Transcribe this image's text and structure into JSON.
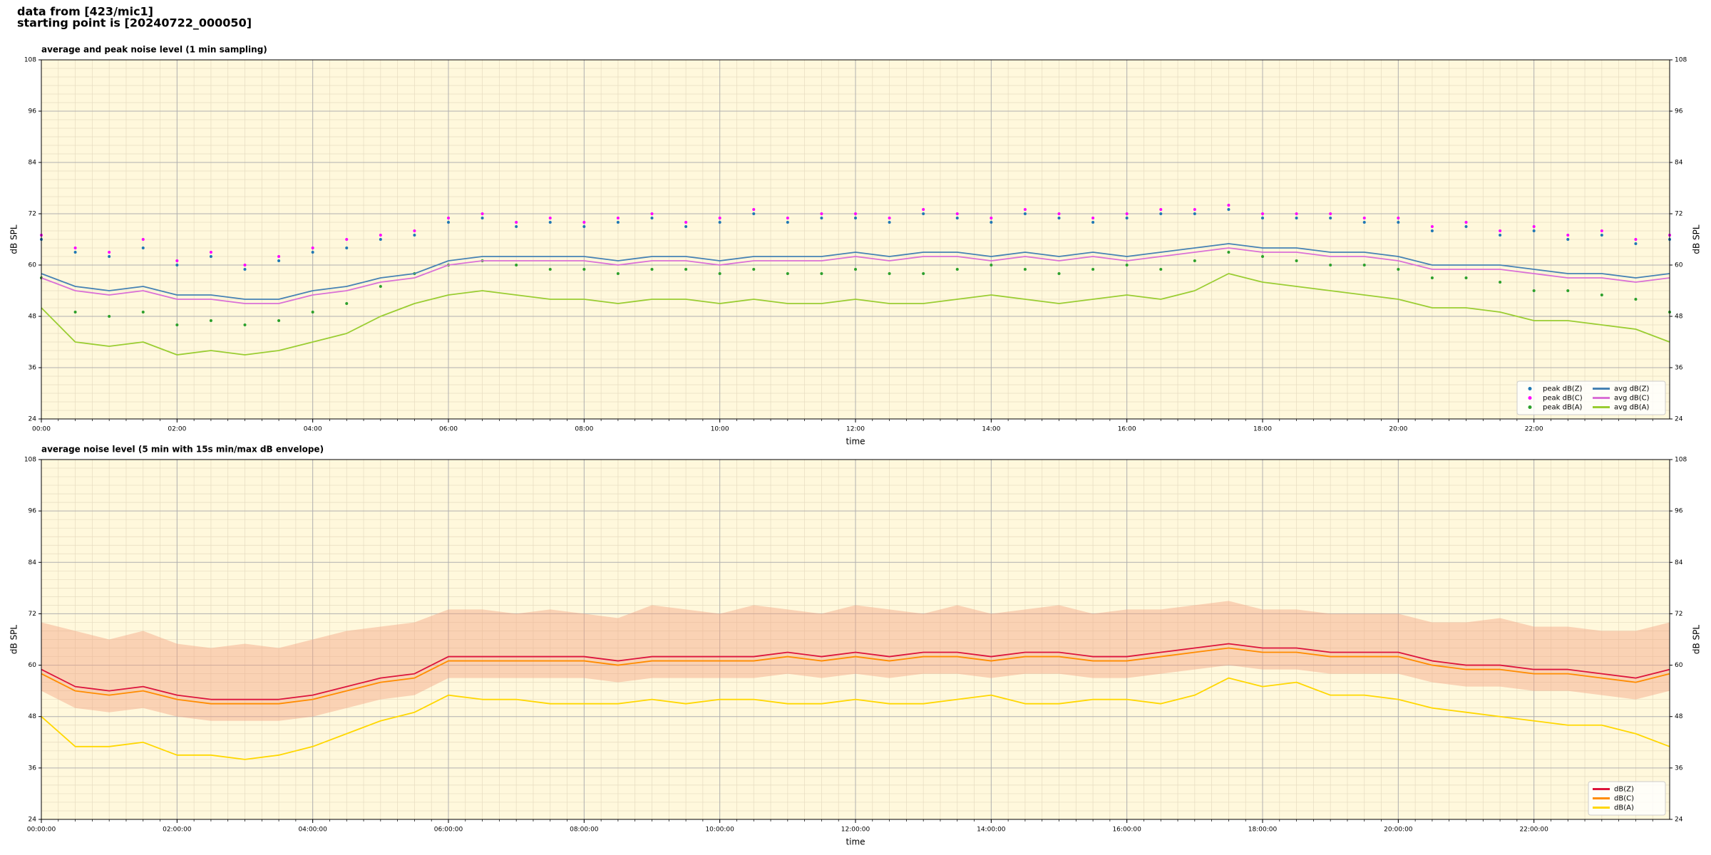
{
  "header": {
    "lines": [
      "data from [423/mic1]",
      "starting point is [20240722_000050]"
    ]
  },
  "chart_data": [
    {
      "type": "line",
      "title": "average and peak noise level (1 min sampling)",
      "xlabel": "time",
      "ylabel": "dB SPL",
      "background": "#fff8dc",
      "grid": true,
      "minor_grid": true,
      "legend": {
        "loc": "lower right",
        "ncol": 2
      },
      "xlim": [
        0,
        24
      ],
      "ylim": [
        24,
        108
      ],
      "yticks": [
        24,
        36,
        48,
        60,
        72,
        84,
        96,
        108
      ],
      "xticks": [
        {
          "value": 0,
          "label": "00:00"
        },
        {
          "value": 2,
          "label": "02:00"
        },
        {
          "value": 4,
          "label": "04:00"
        },
        {
          "value": 6,
          "label": "06:00"
        },
        {
          "value": 8,
          "label": "08:00"
        },
        {
          "value": 10,
          "label": "10:00"
        },
        {
          "value": 12,
          "label": "12:00"
        },
        {
          "value": 14,
          "label": "14:00"
        },
        {
          "value": 16,
          "label": "16:00"
        },
        {
          "value": 18,
          "label": "18:00"
        },
        {
          "value": 20,
          "label": "20:00"
        },
        {
          "value": 22,
          "label": "22:00"
        }
      ],
      "x": [
        0,
        0.5,
        1,
        1.5,
        2,
        2.5,
        3,
        3.5,
        4,
        4.5,
        5,
        5.5,
        6,
        6.5,
        7,
        7.5,
        8,
        8.5,
        9,
        9.5,
        10,
        10.5,
        11,
        11.5,
        12,
        12.5,
        13,
        13.5,
        14,
        14.5,
        15,
        15.5,
        16,
        16.5,
        17,
        17.5,
        18,
        18.5,
        19,
        19.5,
        20,
        20.5,
        21,
        21.5,
        22,
        22.5,
        23,
        23.5,
        24
      ],
      "series": [
        {
          "name": "peak dB(Z)",
          "type": "scatter",
          "color": "#1f77b4",
          "values": [
            66,
            63,
            62,
            64,
            60,
            62,
            59,
            61,
            63,
            64,
            66,
            67,
            70,
            71,
            69,
            70,
            69,
            70,
            71,
            69,
            70,
            72,
            70,
            71,
            71,
            70,
            72,
            71,
            70,
            72,
            71,
            70,
            71,
            72,
            72,
            73,
            71,
            71,
            71,
            70,
            70,
            68,
            69,
            67,
            68,
            66,
            67,
            65,
            66
          ]
        },
        {
          "name": "peak dB(C)",
          "type": "scatter",
          "color": "#ff00ff",
          "values": [
            67,
            64,
            63,
            66,
            61,
            63,
            60,
            62,
            64,
            66,
            67,
            68,
            71,
            72,
            70,
            71,
            70,
            71,
            72,
            70,
            71,
            73,
            71,
            72,
            72,
            71,
            73,
            72,
            71,
            73,
            72,
            71,
            72,
            73,
            73,
            74,
            72,
            72,
            72,
            71,
            71,
            69,
            70,
            68,
            69,
            67,
            68,
            66,
            67
          ]
        },
        {
          "name": "peak dB(A)",
          "type": "scatter",
          "color": "#2ca02c",
          "values": [
            57,
            49,
            48,
            49,
            46,
            47,
            46,
            47,
            49,
            51,
            55,
            58,
            60,
            61,
            60,
            59,
            59,
            58,
            59,
            59,
            58,
            59,
            58,
            58,
            59,
            58,
            58,
            59,
            60,
            59,
            58,
            59,
            60,
            59,
            61,
            63,
            62,
            61,
            60,
            60,
            59,
            57,
            57,
            56,
            54,
            54,
            53,
            52,
            49
          ]
        },
        {
          "name": "avg dB(Z)",
          "type": "line",
          "color": "#4682b4",
          "values": [
            58,
            55,
            54,
            55,
            53,
            53,
            52,
            52,
            54,
            55,
            57,
            58,
            61,
            62,
            62,
            62,
            62,
            61,
            62,
            62,
            61,
            62,
            62,
            62,
            63,
            62,
            63,
            63,
            62,
            63,
            62,
            63,
            62,
            63,
            64,
            65,
            64,
            64,
            63,
            63,
            62,
            60,
            60,
            60,
            59,
            58,
            58,
            57,
            58
          ]
        },
        {
          "name": "avg dB(C)",
          "type": "line",
          "color": "#da70d6",
          "values": [
            57,
            54,
            53,
            54,
            52,
            52,
            51,
            51,
            53,
            54,
            56,
            57,
            60,
            61,
            61,
            61,
            61,
            60,
            61,
            61,
            60,
            61,
            61,
            61,
            62,
            61,
            62,
            62,
            61,
            62,
            61,
            62,
            61,
            62,
            63,
            64,
            63,
            63,
            62,
            62,
            61,
            59,
            59,
            59,
            58,
            57,
            57,
            56,
            57
          ]
        },
        {
          "name": "avg dB(A)",
          "type": "line",
          "color": "#9acd32",
          "values": [
            50,
            42,
            41,
            42,
            39,
            40,
            39,
            40,
            42,
            44,
            48,
            51,
            53,
            54,
            53,
            52,
            52,
            51,
            52,
            52,
            51,
            52,
            51,
            51,
            52,
            51,
            51,
            52,
            53,
            52,
            51,
            52,
            53,
            52,
            54,
            58,
            56,
            55,
            54,
            53,
            52,
            50,
            50,
            49,
            47,
            47,
            46,
            45,
            42
          ]
        }
      ]
    },
    {
      "type": "line",
      "title": "average noise level (5 min with 15s min/max dB envelope)",
      "xlabel": "time",
      "ylabel": "dB SPL",
      "background": "#fff8dc",
      "grid": true,
      "minor_grid": true,
      "legend": {
        "loc": "lower right",
        "ncol": 1
      },
      "xlim": [
        0,
        24
      ],
      "ylim": [
        24,
        108
      ],
      "yticks": [
        24,
        36,
        48,
        60,
        72,
        84,
        96,
        108
      ],
      "xticks": [
        {
          "value": 0,
          "label": "00:00:00"
        },
        {
          "value": 2,
          "label": "02:00:00"
        },
        {
          "value": 4,
          "label": "04:00:00"
        },
        {
          "value": 6,
          "label": "06:00:00"
        },
        {
          "value": 8,
          "label": "08:00:00"
        },
        {
          "value": 10,
          "label": "10:00:00"
        },
        {
          "value": 12,
          "label": "12:00:00"
        },
        {
          "value": 14,
          "label": "14:00:00"
        },
        {
          "value": 16,
          "label": "16:00:00"
        },
        {
          "value": 18,
          "label": "18:00:00"
        },
        {
          "value": 20,
          "label": "20:00:00"
        },
        {
          "value": 22,
          "label": "22:00:00"
        }
      ],
      "x": [
        0,
        0.5,
        1,
        1.5,
        2,
        2.5,
        3,
        3.5,
        4,
        4.5,
        5,
        5.5,
        6,
        6.5,
        7,
        7.5,
        8,
        8.5,
        9,
        9.5,
        10,
        10.5,
        11,
        11.5,
        12,
        12.5,
        13,
        13.5,
        14,
        14.5,
        15,
        15.5,
        16,
        16.5,
        17,
        17.5,
        18,
        18.5,
        19,
        19.5,
        20,
        20.5,
        21,
        21.5,
        22,
        22.5,
        23,
        23.5,
        24
      ],
      "band": {
        "color": "#f4a582",
        "low": [
          54,
          50,
          49,
          50,
          48,
          47,
          47,
          47,
          48,
          50,
          52,
          53,
          57,
          57,
          57,
          57,
          57,
          56,
          57,
          57,
          57,
          57,
          58,
          57,
          58,
          57,
          58,
          58,
          57,
          58,
          58,
          57,
          57,
          58,
          59,
          60,
          59,
          59,
          58,
          58,
          58,
          56,
          55,
          55,
          54,
          54,
          53,
          52,
          54
        ],
        "high": [
          70,
          68,
          66,
          68,
          65,
          64,
          65,
          64,
          66,
          68,
          69,
          70,
          73,
          73,
          72,
          73,
          72,
          71,
          74,
          73,
          72,
          74,
          73,
          72,
          74,
          73,
          72,
          74,
          72,
          73,
          74,
          72,
          73,
          73,
          74,
          75,
          73,
          73,
          72,
          72,
          72,
          70,
          70,
          71,
          69,
          69,
          68,
          68,
          70
        ]
      },
      "series": [
        {
          "name": "dB(Z)",
          "type": "line",
          "color": "#dc143c",
          "values": [
            59,
            55,
            54,
            55,
            53,
            52,
            52,
            52,
            53,
            55,
            57,
            58,
            62,
            62,
            62,
            62,
            62,
            61,
            62,
            62,
            62,
            62,
            63,
            62,
            63,
            62,
            63,
            63,
            62,
            63,
            63,
            62,
            62,
            63,
            64,
            65,
            64,
            64,
            63,
            63,
            63,
            61,
            60,
            60,
            59,
            59,
            58,
            57,
            59
          ]
        },
        {
          "name": "dB(C)",
          "type": "line",
          "color": "#ff8c00",
          "values": [
            58,
            54,
            53,
            54,
            52,
            51,
            51,
            51,
            52,
            54,
            56,
            57,
            61,
            61,
            61,
            61,
            61,
            60,
            61,
            61,
            61,
            61,
            62,
            61,
            62,
            61,
            62,
            62,
            61,
            62,
            62,
            61,
            61,
            62,
            63,
            64,
            63,
            63,
            62,
            62,
            62,
            60,
            59,
            59,
            58,
            58,
            57,
            56,
            58
          ]
        },
        {
          "name": "dB(A)",
          "type": "line",
          "color": "#ffd700",
          "values": [
            48,
            41,
            41,
            42,
            39,
            39,
            38,
            39,
            41,
            44,
            47,
            49,
            53,
            52,
            52,
            51,
            51,
            51,
            52,
            51,
            52,
            52,
            51,
            51,
            52,
            51,
            51,
            52,
            53,
            51,
            51,
            52,
            52,
            51,
            53,
            57,
            55,
            56,
            53,
            53,
            52,
            50,
            49,
            48,
            47,
            46,
            46,
            44,
            41
          ]
        }
      ]
    }
  ]
}
